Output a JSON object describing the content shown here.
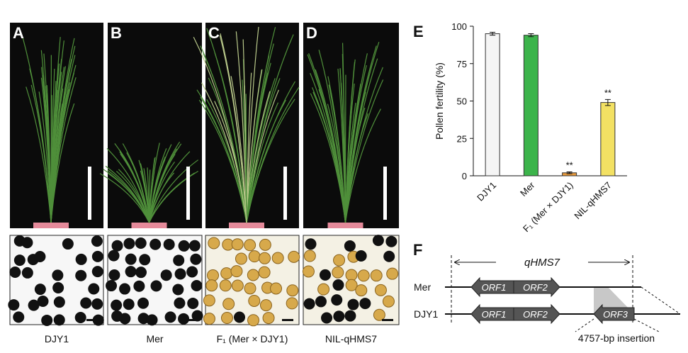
{
  "photos": {
    "panels": [
      "A",
      "B",
      "C",
      "D"
    ],
    "captions": [
      "DJY1",
      "Mer",
      "F₁ (Mer × DJY1)",
      "NIL-qHMS7"
    ]
  },
  "chart_data": {
    "type": "bar",
    "panel": "E",
    "ylabel": "Pollen fertility (%)",
    "categories": [
      "DJY1",
      "Mer",
      "F₁ (Mer × DJY1)",
      "NIL-qHMS7"
    ],
    "values": [
      95,
      94,
      2,
      49
    ],
    "errors": [
      1,
      1,
      0.6,
      2
    ],
    "colors": [
      "#f5f5f5",
      "#3cb44b",
      "#e89a3c",
      "#f3e163"
    ],
    "significance": [
      null,
      null,
      "**",
      "**"
    ],
    "ylim": [
      0,
      100
    ],
    "yticks": [
      0,
      25,
      50,
      75,
      100
    ]
  },
  "diagram": {
    "panel": "F",
    "region_label": "qHMS7",
    "rows": [
      {
        "label": "Mer",
        "genes": [
          "ORF1",
          "ORF2"
        ]
      },
      {
        "label": "DJY1",
        "genes": [
          "ORF1",
          "ORF2",
          "ORF3"
        ]
      }
    ],
    "insertion_label": "4757-bp insertion"
  }
}
